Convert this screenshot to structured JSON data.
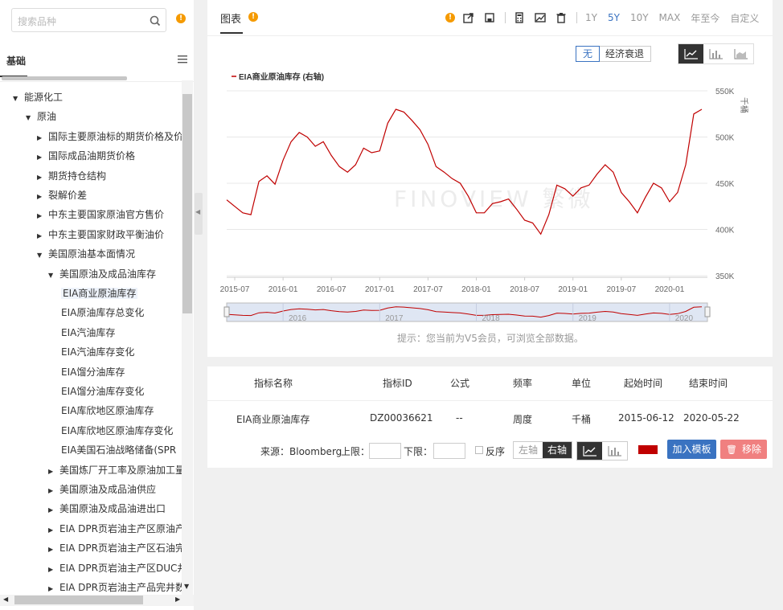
{
  "sidebar": {
    "search_placeholder": "搜索品种",
    "tab_label": "基础",
    "tree": [
      {
        "label": "能源化工",
        "level": 0,
        "arrow": "down"
      },
      {
        "label": "原油",
        "level": 1,
        "arrow": "down"
      },
      {
        "label": "国际主要原油标的期货价格及价",
        "level": 2,
        "arrow": "right"
      },
      {
        "label": "国际成品油期货价格",
        "level": 2,
        "arrow": "right"
      },
      {
        "label": "期货持仓结构",
        "level": 2,
        "arrow": "right"
      },
      {
        "label": "裂解价差",
        "level": 2,
        "arrow": "right"
      },
      {
        "label": "中东主要国家原油官方售价",
        "level": 2,
        "arrow": "right"
      },
      {
        "label": "中东主要国家财政平衡油价",
        "level": 2,
        "arrow": "right"
      },
      {
        "label": "美国原油基本面情况",
        "level": 2,
        "arrow": "down"
      },
      {
        "label": "美国原油及成品油库存",
        "level": 3,
        "arrow": "down"
      },
      {
        "label": "EIA商业原油库存",
        "level": 4,
        "arrow": "",
        "selected": true
      },
      {
        "label": "EIA原油库存总变化",
        "level": 4,
        "arrow": ""
      },
      {
        "label": "EIA汽油库存",
        "level": 4,
        "arrow": ""
      },
      {
        "label": "EIA汽油库存变化",
        "level": 4,
        "arrow": ""
      },
      {
        "label": "EIA馏分油库存",
        "level": 4,
        "arrow": ""
      },
      {
        "label": "EIA馏分油库存变化",
        "level": 4,
        "arrow": ""
      },
      {
        "label": "EIA库欣地区原油库存",
        "level": 4,
        "arrow": ""
      },
      {
        "label": "EIA库欣地区原油库存变化",
        "level": 4,
        "arrow": ""
      },
      {
        "label": "EIA美国石油战略储备(SPR",
        "level": 4,
        "arrow": ""
      },
      {
        "label": "美国炼厂开工率及原油加工量",
        "level": 3,
        "arrow": "right"
      },
      {
        "label": "美国原油及成品油供应",
        "level": 3,
        "arrow": "right"
      },
      {
        "label": "美国原油及成品油进出口",
        "level": 3,
        "arrow": "right"
      },
      {
        "label": "EIA DPR页岩油主产区原油产",
        "level": 3,
        "arrow": "right"
      },
      {
        "label": "EIA DPR页岩油主产区石油完",
        "level": 3,
        "arrow": "right"
      },
      {
        "label": "EIA DPR页岩油主产区DUC井",
        "level": 3,
        "arrow": "right"
      },
      {
        "label": "EIA DPR页岩油主产品完井数",
        "level": 3,
        "arrow": "right"
      }
    ]
  },
  "panel": {
    "title": "图表",
    "ranges": [
      "1Y",
      "5Y",
      "10Y",
      "MAX",
      "年至今",
      "自定义"
    ],
    "active_range": "5Y",
    "overlay_options": [
      "无",
      "经济衰退"
    ],
    "watermark": "FINOVIEW 繁微",
    "hint": "提示：您当前为V5会员，可浏览全部数据。"
  },
  "chart_data": {
    "type": "line",
    "legend": "EIA商业原油库存 (右轴)",
    "unit_label": "千桶",
    "y_ticks": [
      "550K",
      "500K",
      "450K",
      "400K",
      "350K"
    ],
    "ylim": [
      350000,
      550000
    ],
    "x_ticks": [
      "2015-07",
      "2016-01",
      "2016-07",
      "2017-01",
      "2017-07",
      "2018-01",
      "2018-07",
      "2019-01",
      "2019-07",
      "2020-01"
    ],
    "navigator_labels": [
      "2016",
      "2017",
      "2018",
      "2019",
      "2020"
    ],
    "series": [
      {
        "name": "EIA商业原油库存",
        "color": "#c00000",
        "x": [
          "2015-06",
          "2015-07",
          "2015-08",
          "2015-09",
          "2015-10",
          "2015-11",
          "2015-12",
          "2016-01",
          "2016-02",
          "2016-03",
          "2016-04",
          "2016-05",
          "2016-06",
          "2016-07",
          "2016-08",
          "2016-09",
          "2016-10",
          "2016-11",
          "2016-12",
          "2017-01",
          "2017-02",
          "2017-03",
          "2017-04",
          "2017-05",
          "2017-06",
          "2017-07",
          "2017-08",
          "2017-09",
          "2017-10",
          "2017-11",
          "2017-12",
          "2018-01",
          "2018-02",
          "2018-03",
          "2018-04",
          "2018-05",
          "2018-06",
          "2018-07",
          "2018-08",
          "2018-09",
          "2018-10",
          "2018-11",
          "2018-12",
          "2019-01",
          "2019-02",
          "2019-03",
          "2019-04",
          "2019-05",
          "2019-06",
          "2019-07",
          "2019-08",
          "2019-09",
          "2019-10",
          "2019-11",
          "2019-12",
          "2020-01",
          "2020-02",
          "2020-03",
          "2020-04",
          "2020-05"
        ],
        "values": [
          432000,
          425000,
          418000,
          416000,
          452000,
          458000,
          449000,
          475000,
          495000,
          505000,
          500000,
          490000,
          495000,
          480000,
          468000,
          462000,
          470000,
          488000,
          483000,
          485000,
          515000,
          530000,
          527000,
          518000,
          508000,
          492000,
          468000,
          462000,
          455000,
          450000,
          436000,
          418000,
          418000,
          428000,
          430000,
          433000,
          422000,
          410000,
          407000,
          395000,
          416000,
          448000,
          444000,
          436000,
          445000,
          448000,
          460000,
          470000,
          462000,
          440000,
          430000,
          418000,
          435000,
          450000,
          445000,
          430000,
          440000,
          470000,
          525000,
          530000
        ]
      }
    ]
  },
  "table": {
    "headers": [
      "指标名称",
      "指标ID",
      "公式",
      "频率",
      "单位",
      "起始时间",
      "结束时间"
    ],
    "row": [
      "EIA商业原油库存",
      "DZ00036621",
      "--",
      "周度",
      "千桶",
      "2015-06-12",
      "2020-05-22"
    ],
    "source": "来源：Bloomberg",
    "upper_label": "上限：",
    "lower_label": "下限：",
    "reverse_label": "反序",
    "axis_left": "左轴",
    "axis_right": "右轴",
    "add_button": "加入模板",
    "remove_button": "移除",
    "series_color": "#c00000"
  }
}
